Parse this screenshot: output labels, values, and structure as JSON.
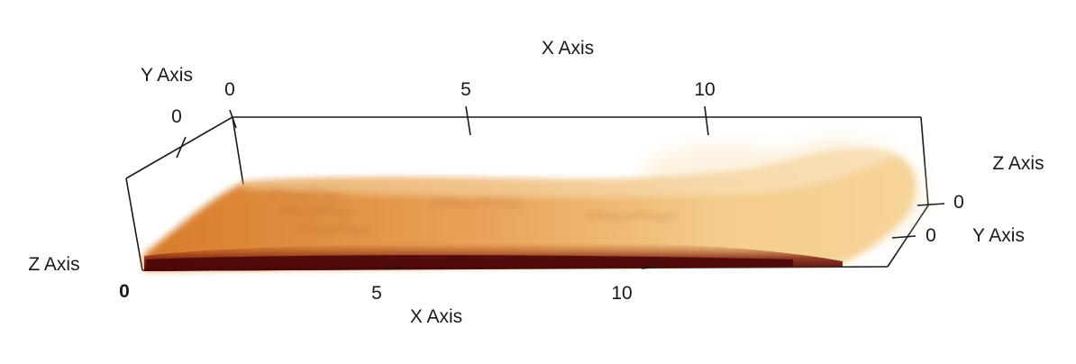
{
  "axes": {
    "x_top": {
      "title": "X Axis",
      "ticks": [
        "0",
        "5",
        "10"
      ]
    },
    "x_bottom": {
      "title": "X Axis",
      "ticks": [
        "0",
        "5",
        "10"
      ]
    },
    "y_left": {
      "title": "Y Axis",
      "ticks": [
        "0"
      ]
    },
    "y_right": {
      "title": "Y Axis",
      "ticks": [
        "0"
      ]
    },
    "z_left": {
      "title": "Z Axis"
    },
    "z_right": {
      "title": "Z Axis",
      "ticks": [
        "0"
      ]
    }
  },
  "colormap": {
    "dark": "#5a0b0b",
    "mid": "#c8661c",
    "light": "#f2c07a",
    "pale": "#fdf1d8"
  }
}
